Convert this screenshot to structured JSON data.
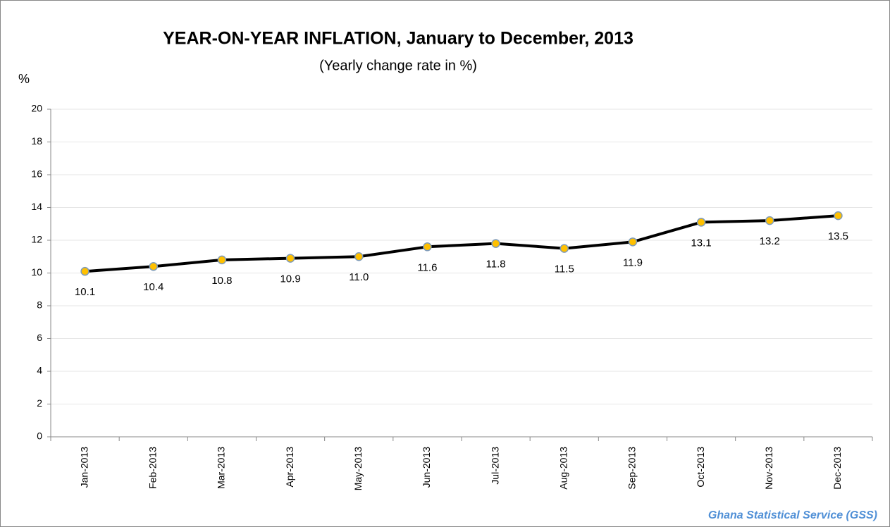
{
  "chart_data": {
    "type": "line",
    "title": "YEAR-ON-YEAR INFLATION, January to December, 2013",
    "subtitle": "(Yearly change rate in %)",
    "y_label": "%",
    "source": "Ghana Statistical Service (GSS)",
    "categories": [
      "Jan-2013",
      "Feb-2013",
      "Mar-2013",
      "Apr-2013",
      "May-2013",
      "Jun-2013",
      "Jul-2013",
      "Aug-2013",
      "Sep-2013",
      "Oct-2013",
      "Nov-2013",
      "Dec-2013"
    ],
    "values": [
      10.1,
      10.4,
      10.8,
      10.9,
      11.0,
      11.6,
      11.8,
      11.5,
      11.9,
      13.1,
      13.2,
      13.5
    ],
    "value_labels": [
      "10.1",
      "10.4",
      "10.8",
      "10.9",
      "11.0",
      "11.6",
      "11.8",
      "11.5",
      "11.9",
      "13.1",
      "13.2",
      "13.5"
    ],
    "color": "#000000",
    "marker_color": "#FFC000",
    "ylim": [
      0,
      20
    ],
    "yticks": [
      0,
      2,
      4,
      6,
      8,
      10,
      12,
      14,
      16,
      18,
      20
    ],
    "grid": true
  }
}
